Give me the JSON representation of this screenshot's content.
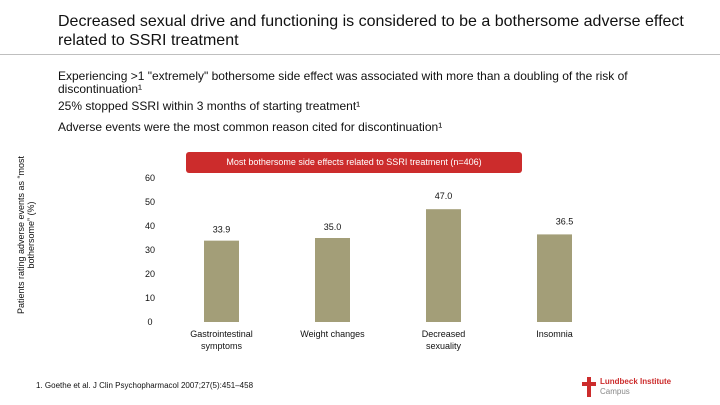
{
  "slide": {
    "title": "Decreased sexual drive and functioning is considered to be a bothersome adverse effect related to SSRI treatment",
    "bullets": [
      "Experiencing >1 \"extremely\" bothersome side effect was associated with more than a doubling of the risk of discontinuation¹",
      "25% stopped SSRI within 3 months of starting treatment¹",
      "Adverse events were the most common reason cited for discontinuation¹"
    ],
    "footnote": "1. Goethe et al. J Clin Psychopharmacol 2007;27(5):451–458",
    "logo": {
      "line1": "Lundbeck Institute",
      "line2": "Campus"
    }
  },
  "colors": {
    "bar": "#a39e78",
    "banner": "#cc2c2c",
    "axis": "#bfbfbf"
  },
  "chart_data": {
    "type": "bar",
    "title": "Most bothersome side effects related to SSRI treatment (n=406)",
    "ylabel": "Patients rating adverse events as “most bothersome” (%)",
    "xlabel": "",
    "categories": [
      [
        "Gastrointestinal",
        "symptoms"
      ],
      [
        "Weight changes"
      ],
      [
        "Decreased",
        "sexuality"
      ],
      [
        "Insomnia"
      ]
    ],
    "values": [
      33.9,
      35.0,
      47.0,
      36.5
    ],
    "value_labels": [
      "33.9",
      "35.0",
      "47.0",
      "36.5"
    ],
    "ylim": [
      0,
      60
    ],
    "yticks": [
      0,
      10,
      20,
      30,
      40,
      50,
      60
    ],
    "grid": false,
    "legend": "none"
  }
}
